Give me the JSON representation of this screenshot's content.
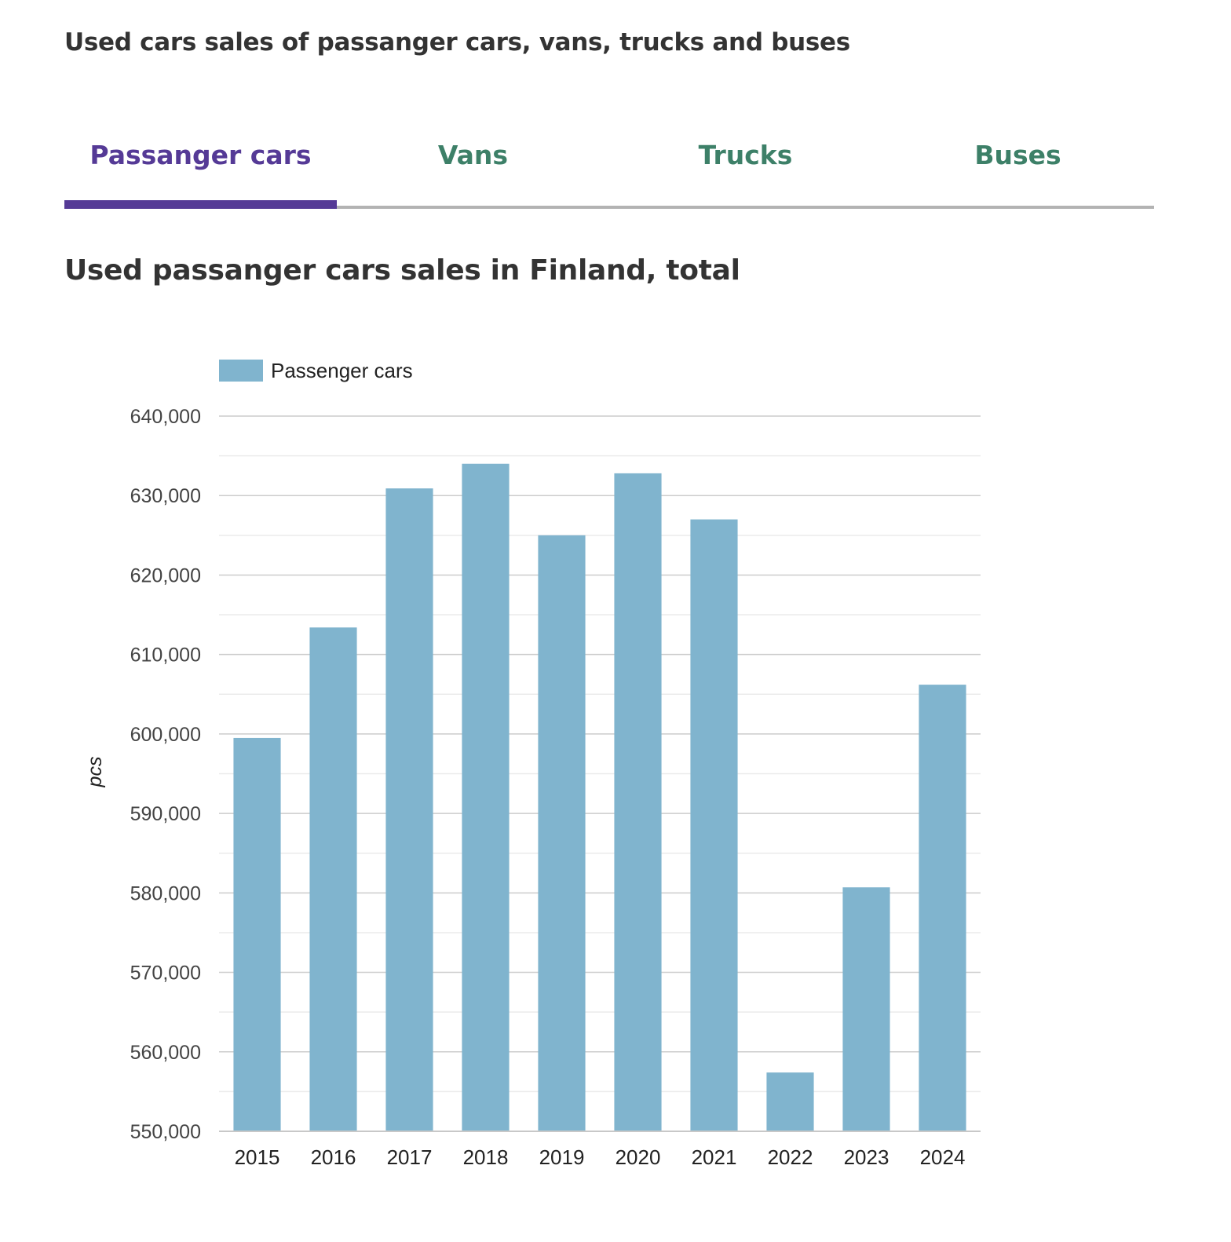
{
  "page": {
    "title": "Used cars sales of passanger cars, vans, trucks and buses"
  },
  "tabs": [
    {
      "label": "Passanger cars",
      "active": true
    },
    {
      "label": "Vans",
      "active": false
    },
    {
      "label": "Trucks",
      "active": false
    },
    {
      "label": "Buses",
      "active": false
    }
  ],
  "section": {
    "title": "Used passanger cars sales in Finland, total"
  },
  "colors": {
    "active_tab": "#553a96",
    "inactive_tab": "#3d8068",
    "bar": "#80b4ce"
  },
  "chart_data": {
    "type": "bar",
    "title": "Used passanger cars sales in Finland, total",
    "xlabel": "",
    "ylabel": "pcs",
    "categories": [
      "2015",
      "2016",
      "2017",
      "2018",
      "2019",
      "2020",
      "2021",
      "2022",
      "2023",
      "2024"
    ],
    "series": [
      {
        "name": "Passenger cars",
        "values": [
          599500,
          613400,
          630900,
          634000,
          625000,
          632800,
          627000,
          557400,
          580700,
          606200
        ]
      }
    ],
    "ylim": [
      550000,
      640000
    ],
    "yticks": [
      550000,
      560000,
      570000,
      580000,
      590000,
      600000,
      610000,
      620000,
      630000,
      640000
    ],
    "ytick_labels": [
      "550,000",
      "560,000",
      "570,000",
      "580,000",
      "590,000",
      "600,000",
      "610,000",
      "620,000",
      "630,000",
      "640,000"
    ],
    "grid": true,
    "minor_grid": true,
    "legend": {
      "position": "top-left",
      "entries": [
        "Passenger cars"
      ]
    }
  }
}
